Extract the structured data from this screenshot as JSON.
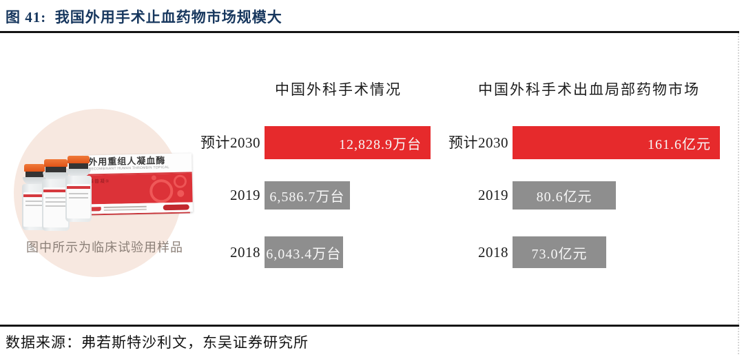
{
  "figure": {
    "title": "图 41:  我国外用手术止血药物市场规模大",
    "source": "数据来源：弗若斯特沙利文，东吴证券研究所"
  },
  "product": {
    "caption": "图中所示为临床试验用样品",
    "box": {
      "title": "外用重组人凝血酶",
      "subtitle": "RECOMBINANT HUMAN THROMBIN TOPICAL",
      "brand": "泽普凝®"
    }
  },
  "chart_data": [
    {
      "type": "bar",
      "orientation": "horizontal",
      "title": "中国外科手术情况",
      "categories": [
        "预计2030",
        "2019",
        "2018"
      ],
      "values": [
        12828.9,
        6586.7,
        6043.4
      ],
      "labels": [
        "12,828.9万台",
        "6,586.7万台",
        "6,043.4万台"
      ],
      "unit": "万台",
      "xlim": [
        0,
        12828.9
      ],
      "bar_colors": [
        "#e62a2c",
        "#8e8e8e",
        "#8e8e8e"
      ],
      "grid": false,
      "legend": "none"
    },
    {
      "type": "bar",
      "orientation": "horizontal",
      "title": "中国外科手术出血局部药物市场",
      "categories": [
        "预计2030",
        "2019",
        "2018"
      ],
      "values": [
        161.6,
        80.6,
        73.0
      ],
      "labels": [
        "161.6亿元",
        "80.6亿元",
        "73.0亿元"
      ],
      "unit": "亿元",
      "xlim": [
        0,
        161.6
      ],
      "bar_colors": [
        "#e62a2c",
        "#8e8e8e",
        "#8e8e8e"
      ],
      "grid": false,
      "legend": "none"
    }
  ],
  "colors": {
    "accent_red": "#e62a2c",
    "bar_gray": "#8e8e8e",
    "title_navy": "#17375e",
    "rule_black": "#141414",
    "circle_peach": "#f7e8e0"
  }
}
